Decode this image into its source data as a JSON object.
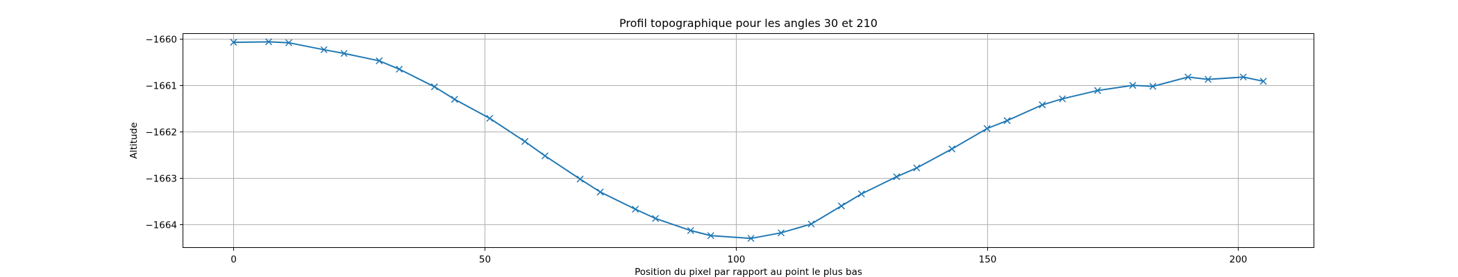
{
  "chart_data": {
    "type": "line",
    "title": "Profil topographique pour les angles 30 et 210",
    "xlabel": "Position du pixel par rapport au point le plus bas",
    "ylabel": "Altitude",
    "xlim": [
      -10,
      215
    ],
    "ylim": [
      -1664.5,
      -1659.9
    ],
    "xticks": [
      0,
      50,
      100,
      150,
      200
    ],
    "xtick_labels": [
      "0",
      "50",
      "100",
      "150",
      "200"
    ],
    "yticks": [
      -1664,
      -1663,
      -1662,
      -1661,
      -1660
    ],
    "ytick_labels": [
      "−1664",
      "−1663",
      "−1662",
      "−1661",
      "−1660"
    ],
    "grid": true,
    "marker": "x",
    "color": "#1f77b4",
    "series": [
      {
        "x": [
          0,
          7,
          11,
          18,
          22,
          29,
          33,
          40,
          44,
          51,
          58,
          62,
          69,
          73,
          80,
          84,
          91,
          95,
          103,
          109,
          115,
          121,
          125,
          132,
          136,
          143,
          150,
          154,
          161,
          165,
          172,
          179,
          183,
          190,
          194,
          201,
          205
        ],
        "values": [
          -1660.08,
          -1660.07,
          -1660.09,
          -1660.24,
          -1660.32,
          -1660.48,
          -1660.66,
          -1661.04,
          -1661.31,
          -1661.72,
          -1662.22,
          -1662.53,
          -1663.03,
          -1663.31,
          -1663.68,
          -1663.88,
          -1664.14,
          -1664.25,
          -1664.31,
          -1664.19,
          -1664.0,
          -1663.61,
          -1663.35,
          -1662.98,
          -1662.79,
          -1662.38,
          -1661.94,
          -1661.77,
          -1661.43,
          -1661.3,
          -1661.12,
          -1661.01,
          -1661.03,
          -1660.83,
          -1660.88,
          -1660.83,
          -1660.92
        ]
      }
    ]
  }
}
